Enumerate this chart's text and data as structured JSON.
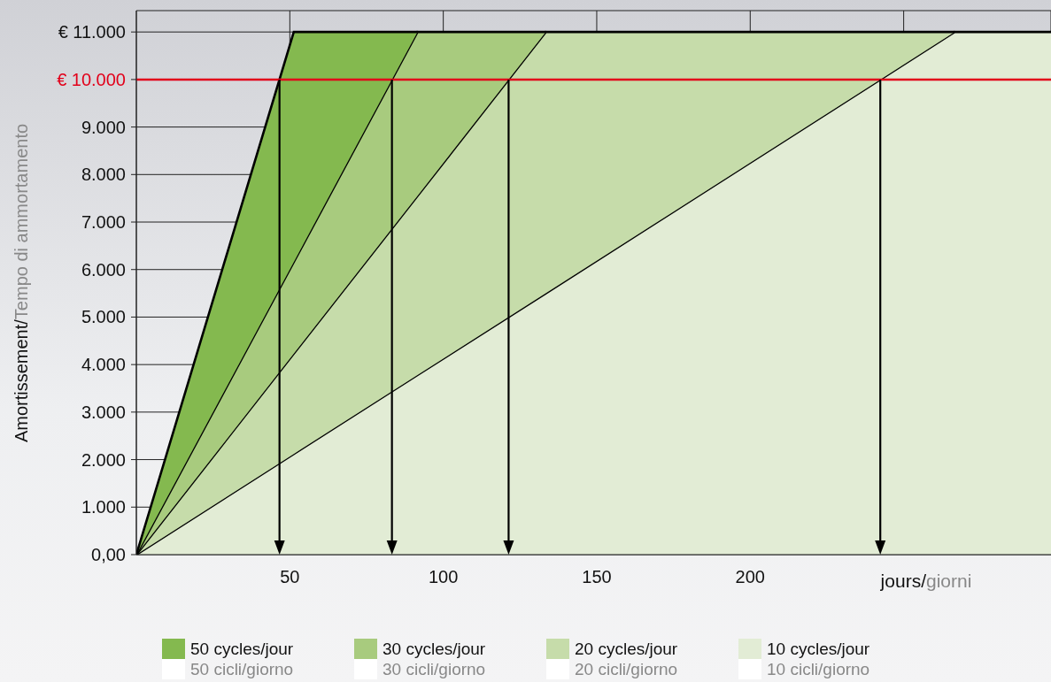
{
  "chart_data": {
    "type": "area",
    "ylabel": "Amortissement/Tempo di ammortamento",
    "xlabel": "jours/giorni",
    "xlim": [
      0,
      298
    ],
    "xticks": [
      50,
      100,
      150,
      200,
      {
        "value": 250,
        "label": null
      }
    ],
    "ylim": [
      0,
      11450
    ],
    "yticks": [
      {
        "value": 0,
        "label": "0,00"
      },
      {
        "value": 1000,
        "label": "1.000"
      },
      {
        "value": 2000,
        "label": "2.000"
      },
      {
        "value": 3000,
        "label": "3.000"
      },
      {
        "value": 4000,
        "label": "4.000"
      },
      {
        "value": 5000,
        "label": "5.000"
      },
      {
        "value": 6000,
        "label": "6.000"
      },
      {
        "value": 7000,
        "label": "7.000"
      },
      {
        "value": 8000,
        "label": "8.000"
      },
      {
        "value": 9000,
        "label": "9.000"
      },
      {
        "value": 10000,
        "label": "€ 10.000"
      },
      {
        "value": 11000,
        "label": "€ 11.000"
      }
    ],
    "grid": true,
    "legend": "bottom",
    "ref_lines": [
      {
        "axis": "y",
        "value": 10000,
        "color": "#e2001a"
      }
    ],
    "stacked": true,
    "x": [
      0,
      51.3,
      91.6,
      133.4,
      266.6,
      298
    ],
    "series": [
      {
        "name": "10 cycles/jour\n10 cicli/giorno",
        "color": "#e2ecd5",
        "values": [
          0,
          2120,
          3780,
          5500,
          11000,
          11000
        ]
      },
      {
        "name": "20 cycles/jour\n20 cicli/giorno",
        "color": "#c6dcaa",
        "values": [
          0,
          2110,
          3770,
          5500,
          0,
          null
        ]
      },
      {
        "name": "30 cycles/jour\n30 cicli/giorno",
        "color": "#a8cb7e",
        "values": [
          0,
          1930,
          3450,
          0,
          null,
          null
        ]
      },
      {
        "name": "50 cycles/jour\n50 cicli/giorno",
        "color": "#84b94f",
        "values": [
          0,
          4840,
          0,
          null,
          null,
          null
        ]
      }
    ]
  }
}
